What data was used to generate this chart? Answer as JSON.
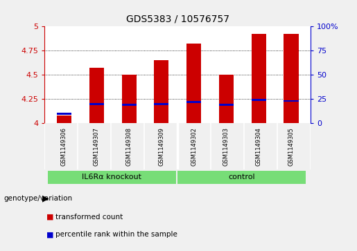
{
  "title": "GDS5383 / 10576757",
  "samples": [
    "GSM1149306",
    "GSM1149307",
    "GSM1149308",
    "GSM1149309",
    "GSM1149302",
    "GSM1149303",
    "GSM1149304",
    "GSM1149305"
  ],
  "red_values": [
    4.08,
    4.57,
    4.5,
    4.65,
    4.82,
    4.5,
    4.92,
    4.92
  ],
  "blue_values": [
    4.1,
    4.2,
    4.19,
    4.2,
    4.22,
    4.19,
    4.24,
    4.23
  ],
  "groups": [
    {
      "label": "IL6Rα knockout",
      "color": "#77dd77",
      "span": [
        0,
        4
      ]
    },
    {
      "label": "control",
      "color": "#77dd77",
      "span": [
        4,
        8
      ]
    }
  ],
  "ylim": [
    4.0,
    5.0
  ],
  "yticks": [
    4.0,
    4.25,
    4.5,
    4.75,
    5.0
  ],
  "ytick_labels": [
    "4",
    "4.25",
    "4.5",
    "4.75",
    "5"
  ],
  "right_yticks": [
    0,
    25,
    50,
    75,
    100
  ],
  "bar_color": "#cc0000",
  "blue_color": "#0000cc",
  "bar_width": 0.45,
  "background_color": "#f0f0f0",
  "plot_bg": "#ffffff",
  "grid_color": "black",
  "title_fontsize": 10,
  "label_bg": "#c8c8c8"
}
